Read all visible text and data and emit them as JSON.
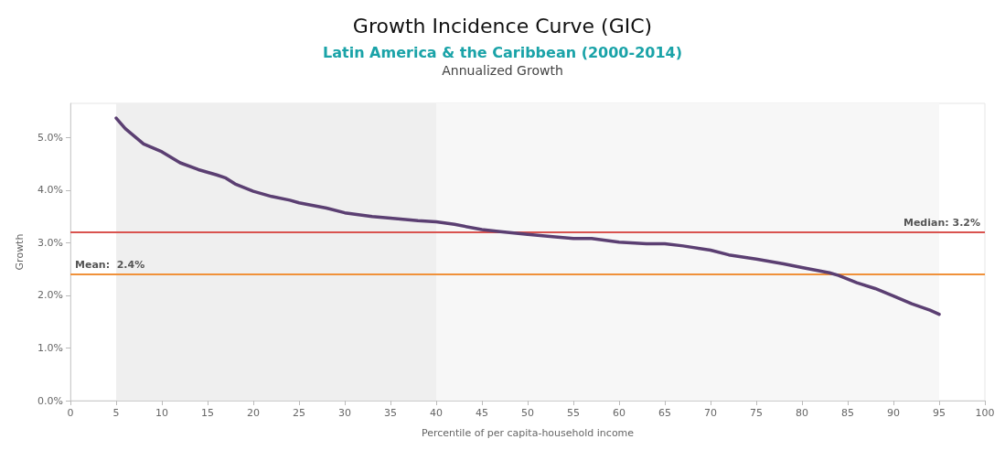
{
  "chart_data": {
    "type": "line",
    "title": "Growth Incidence Curve (GIC)",
    "subtitle": "Latin America & the Caribbean (2000-2014)",
    "annotations": [
      "Annualized Growth"
    ],
    "xlabel": "Percentile of per capita-household income",
    "ylabel": "Growth",
    "x": [
      5,
      6,
      8,
      10,
      12,
      14,
      16,
      17,
      18,
      20,
      22,
      24,
      25,
      28,
      30,
      33,
      35,
      38,
      40,
      42,
      45,
      47,
      50,
      53,
      55,
      57,
      60,
      63,
      65,
      67,
      70,
      72,
      75,
      78,
      80,
      83,
      84,
      86,
      88,
      90,
      92,
      94,
      95
    ],
    "series": [
      {
        "color": "#5b3f72",
        "values": [
          5.37,
          5.17,
          4.88,
          4.73,
          4.52,
          4.39,
          4.29,
          4.23,
          4.12,
          3.98,
          3.88,
          3.81,
          3.76,
          3.66,
          3.57,
          3.5,
          3.47,
          3.42,
          3.4,
          3.35,
          3.25,
          3.21,
          3.16,
          3.11,
          3.08,
          3.08,
          3.01,
          2.98,
          2.98,
          2.94,
          2.86,
          2.77,
          2.69,
          2.6,
          2.53,
          2.43,
          2.38,
          2.24,
          2.13,
          1.99,
          1.84,
          1.72,
          1.64
        ]
      }
    ],
    "xlim": [
      0,
      100
    ],
    "xticks": [
      0,
      5,
      10,
      15,
      20,
      25,
      30,
      35,
      40,
      45,
      50,
      55,
      60,
      65,
      70,
      75,
      80,
      85,
      90,
      95,
      100
    ],
    "ylim": [
      0,
      5.65
    ],
    "yticks": [
      {
        "value": 0,
        "label": "0.0%"
      },
      {
        "value": 1,
        "label": "1.0%"
      },
      {
        "value": 2,
        "label": "2.0%"
      },
      {
        "value": 3,
        "label": "3.0%"
      },
      {
        "value": 4,
        "label": "4.0%"
      },
      {
        "value": 5,
        "label": "5.0%"
      }
    ],
    "ref_lines": [
      {
        "axis": "y",
        "value": 3.2,
        "label": "Median: 3.2%",
        "color": "#d9534f"
      },
      {
        "axis": "y",
        "value": 2.4,
        "label": "Mean:  2.4%",
        "color": "#f0913a"
      }
    ],
    "bands": [
      {
        "axis": "x",
        "from": 5,
        "to": 40,
        "color": "#efefef"
      },
      {
        "axis": "x",
        "from": 40,
        "to": 95,
        "color": "#f7f7f7"
      }
    ],
    "grid": false,
    "marker": "none",
    "line_style": "solid"
  }
}
